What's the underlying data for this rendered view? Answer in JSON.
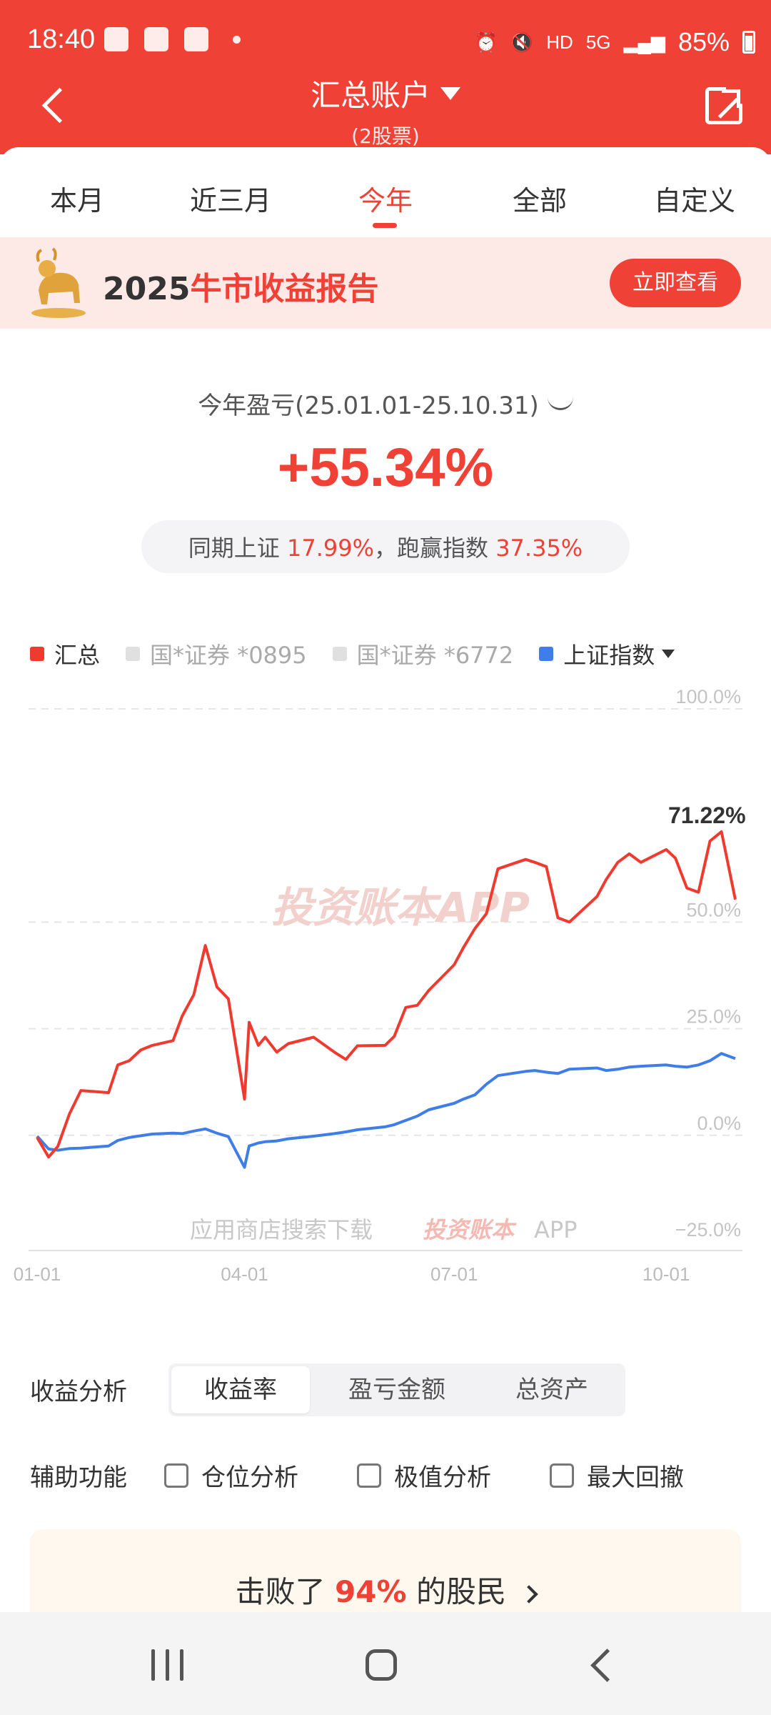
{
  "status_bar": {
    "time": "18:40",
    "network": "5G",
    "hd": "HD",
    "battery": "85%"
  },
  "header": {
    "title": "汇总账户",
    "subtitle": "(2股票)",
    "back_icon": "chevron-left-icon",
    "share_icon": "share-out-icon",
    "bg_color": "#f04136"
  },
  "tabs": {
    "items": [
      "本月",
      "近三月",
      "今年",
      "全部",
      "自定义"
    ],
    "active": "今年"
  },
  "banner": {
    "year": "2025",
    "title_red": "牛市收益报告",
    "button": "立即查看"
  },
  "summary": {
    "period_label": "今年盈亏(25.01.01-25.10.31)",
    "return_pct": "+55.34%",
    "compare_prefix": "同期上证",
    "sse_pct": "17.99%",
    "compare_mid": "，跑赢指数",
    "beat_pct": "37.35%"
  },
  "legend": {
    "items": [
      {
        "label": "汇总",
        "color": "#ef3b2f",
        "active": true
      },
      {
        "label": "国*证券 *0895",
        "color": "#e0e0e0",
        "active": false
      },
      {
        "label": "国*证券 *6772",
        "color": "#e0e0e0",
        "active": false
      },
      {
        "label": "上证指数",
        "color": "#3f7de8",
        "active": true
      }
    ]
  },
  "chart_data": {
    "type": "line",
    "x": [
      "01-01",
      "01-06",
      "01-10",
      "01-15",
      "01-20",
      "02-01",
      "02-05",
      "02-10",
      "02-15",
      "02-20",
      "03-01",
      "03-05",
      "03-10",
      "03-15",
      "03-20",
      "03-25",
      "04-01",
      "04-03",
      "04-07",
      "04-10",
      "04-15",
      "04-20",
      "05-01",
      "05-10",
      "05-15",
      "05-20",
      "06-01",
      "06-05",
      "06-10",
      "06-15",
      "06-20",
      "07-01",
      "07-05",
      "07-10",
      "07-15",
      "07-20",
      "08-01",
      "08-05",
      "08-10",
      "08-15",
      "08-20",
      "09-01",
      "09-05",
      "09-10",
      "09-15",
      "09-20",
      "10-01",
      "10-05",
      "10-10",
      "10-15",
      "10-20",
      "10-25",
      "10-31"
    ],
    "series": [
      {
        "name": "汇总",
        "color": "#ef3b2f",
        "values": [
          -0.5,
          -5.1,
          -2.6,
          5.0,
          10.5,
          10.0,
          16.5,
          17.5,
          20.0,
          21.1,
          22.2,
          28.0,
          33.0,
          44.5,
          34.8,
          32.0,
          8.5,
          26.5,
          21.1,
          23.0,
          19.5,
          21.5,
          23.0,
          19.5,
          17.8,
          21.0,
          21.1,
          23.2,
          30.0,
          30.5,
          34.0,
          40.0,
          44.0,
          48.5,
          52.0,
          62.5,
          64.7,
          64.0,
          63.0,
          51.0,
          50.0,
          56.0,
          60.0,
          64.0,
          66.0,
          64.0,
          67.0,
          65.0,
          58.0,
          57.0,
          69.0,
          71.2,
          55.3
        ]
      },
      {
        "name": "上证指数",
        "color": "#3f7de8",
        "values": [
          -0.2,
          -3.2,
          -3.5,
          -3.1,
          -3.0,
          -2.5,
          -1.2,
          -0.5,
          -0.1,
          0.3,
          0.5,
          0.4,
          1.0,
          1.5,
          0.5,
          -0.3,
          -7.5,
          -2.5,
          -1.8,
          -1.5,
          -1.3,
          -0.8,
          -0.2,
          0.4,
          0.8,
          1.3,
          2.0,
          2.5,
          3.5,
          4.5,
          6.0,
          7.5,
          8.5,
          9.5,
          12.0,
          14.0,
          15.0,
          15.2,
          14.8,
          14.5,
          15.5,
          15.8,
          15.2,
          15.5,
          16.0,
          16.2,
          16.5,
          16.2,
          16.0,
          16.5,
          17.5,
          19.2,
          17.99
        ]
      }
    ],
    "x_ticks": [
      "01-01",
      "04-01",
      "07-01",
      "10-01"
    ],
    "y_ticks": [
      "100.0%",
      "50.0%",
      "25.0%",
      "0.0%",
      "−25.0%"
    ],
    "ylim": [
      -25,
      100
    ],
    "peak_label": "71.22%",
    "grid": true,
    "watermark": "投资账本APP",
    "footer_watermark": {
      "prefix": "应用商店搜索下载",
      "brand": "投资账本",
      "suffix": "APP"
    }
  },
  "analysis": {
    "label": "收益分析",
    "options": [
      "收益率",
      "盈亏金额",
      "总资产"
    ],
    "active": "收益率"
  },
  "assist": {
    "label": "辅助功能",
    "options": [
      "仓位分析",
      "极值分析",
      "最大回撤"
    ]
  },
  "beat": {
    "prefix": "击败了",
    "pct": "94%",
    "suffix": "的股民"
  },
  "navbar": {
    "items": [
      "recents-icon",
      "home-icon",
      "back-icon"
    ]
  }
}
